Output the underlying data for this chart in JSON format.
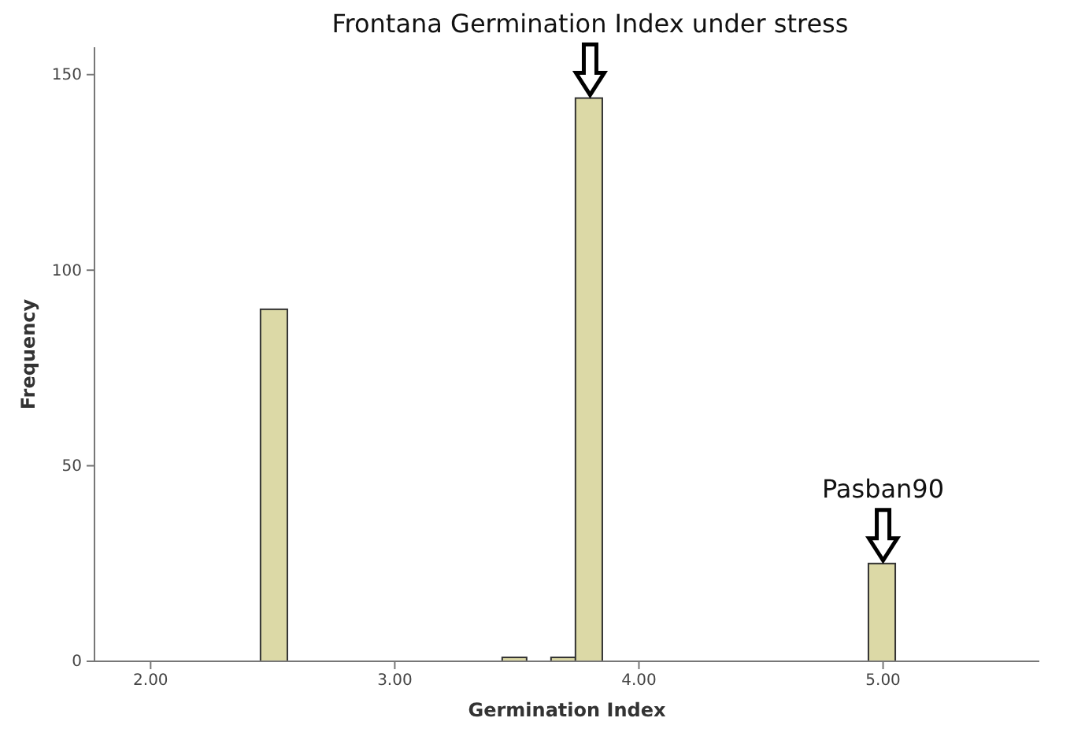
{
  "chart_data": {
    "type": "histogram",
    "xlabel": "Germination Index",
    "ylabel": "Frequency",
    "bins": [
      2.45,
      2.56,
      3.44,
      3.54,
      3.64,
      3.74,
      3.85,
      4.94,
      5.05
    ],
    "values": [
      90,
      0,
      1,
      0,
      1,
      144,
      0,
      25
    ],
    "color": "#dcd9a6",
    "xlim": [
      1.77,
      5.64
    ],
    "ylim": [
      0,
      157
    ],
    "xticks": [
      {
        "value": 2,
        "label": "2.00"
      },
      {
        "value": 3,
        "label": "3.00"
      },
      {
        "value": 4,
        "label": "4.00"
      },
      {
        "value": 5,
        "label": "5.00"
      }
    ],
    "yticks": [
      0,
      50,
      100,
      150
    ],
    "grid": false,
    "annotations": [
      {
        "text": "Frontana Germination Index under stress",
        "x": 3.8,
        "y": 144
      },
      {
        "text": "Pasban90",
        "x": 5,
        "y": 25
      }
    ]
  }
}
